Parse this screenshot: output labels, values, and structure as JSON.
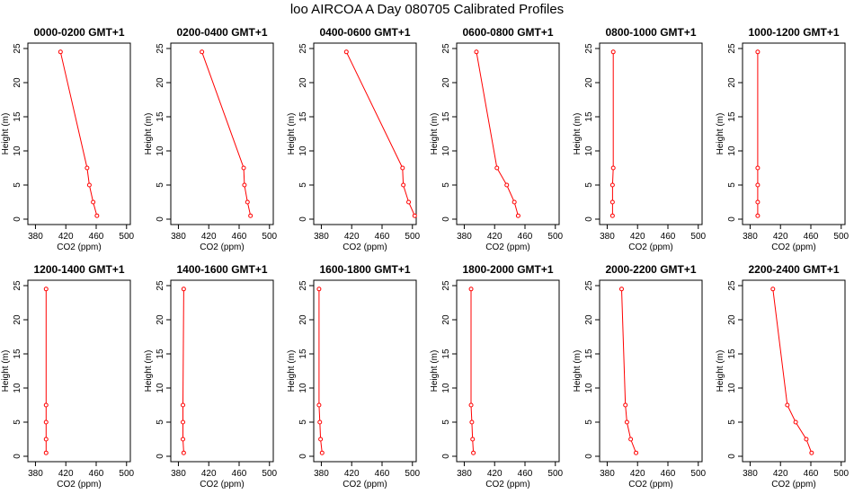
{
  "title": "loo AIRCOA A  Day 080705  Calibrated Profiles",
  "colors": {
    "series": "#ff0000",
    "axes": "#000000"
  },
  "chart_data": [
    {
      "type": "line",
      "title": "0000-0200 GMT+1",
      "xlabel": "CO2 (ppm)",
      "ylabel": "Height (m)",
      "xlim": [
        370,
        505
      ],
      "ylim": [
        0,
        25
      ],
      "xticks": [
        380,
        420,
        460,
        500
      ],
      "yticks": [
        0,
        5,
        10,
        15,
        20,
        25
      ],
      "x": [
        413,
        448,
        451,
        456,
        461
      ],
      "y": [
        24.5,
        7.5,
        5,
        2.5,
        0.5
      ]
    },
    {
      "type": "line",
      "title": "0200-0400 GMT+1",
      "xlabel": "CO2 (ppm)",
      "ylabel": "Height (m)",
      "xlim": [
        370,
        505
      ],
      "ylim": [
        0,
        25
      ],
      "xticks": [
        380,
        420,
        460,
        500
      ],
      "yticks": [
        0,
        5,
        10,
        15,
        20,
        25
      ],
      "x": [
        411,
        466,
        467,
        471,
        475
      ],
      "y": [
        24.5,
        7.5,
        5,
        2.5,
        0.5
      ]
    },
    {
      "type": "line",
      "title": "0400-0600 GMT+1",
      "xlabel": "CO2 (ppm)",
      "ylabel": "Height (m)",
      "xlim": [
        370,
        505
      ],
      "ylim": [
        0,
        25
      ],
      "xticks": [
        380,
        420,
        460,
        500
      ],
      "yticks": [
        0,
        5,
        10,
        15,
        20,
        25
      ],
      "x": [
        413,
        487,
        488,
        495,
        503
      ],
      "y": [
        24.5,
        7.5,
        5,
        2.5,
        0.5
      ]
    },
    {
      "type": "line",
      "title": "0600-0800 GMT+1",
      "xlabel": "CO2 (ppm)",
      "ylabel": "Height (m)",
      "xlim": [
        370,
        505
      ],
      "ylim": [
        0,
        25
      ],
      "xticks": [
        380,
        420,
        460,
        500
      ],
      "yticks": [
        0,
        5,
        10,
        15,
        20,
        25
      ],
      "x": [
        396,
        423,
        436,
        446,
        451
      ],
      "y": [
        24.5,
        7.5,
        5,
        2.5,
        0.5
      ]
    },
    {
      "type": "line",
      "title": "0800-1000 GMT+1",
      "xlabel": "CO2 (ppm)",
      "ylabel": "Height (m)",
      "xlim": [
        370,
        505
      ],
      "ylim": [
        0,
        25
      ],
      "xticks": [
        380,
        420,
        460,
        500
      ],
      "yticks": [
        0,
        5,
        10,
        15,
        20,
        25
      ],
      "x": [
        388,
        388,
        387,
        387,
        387
      ],
      "y": [
        24.5,
        7.5,
        5,
        2.5,
        0.5
      ]
    },
    {
      "type": "line",
      "title": "1000-1200 GMT+1",
      "xlabel": "CO2 (ppm)",
      "ylabel": "Height (m)",
      "xlim": [
        370,
        505
      ],
      "ylim": [
        0,
        25
      ],
      "xticks": [
        380,
        420,
        460,
        500
      ],
      "yticks": [
        0,
        5,
        10,
        15,
        20,
        25
      ],
      "x": [
        390,
        390,
        390,
        390,
        390
      ],
      "y": [
        24.5,
        7.5,
        5,
        2.5,
        0.5
      ]
    },
    {
      "type": "line",
      "title": "1200-1400 GMT+1",
      "xlabel": "CO2 (ppm)",
      "ylabel": "Height (m)",
      "xlim": [
        370,
        505
      ],
      "ylim": [
        0,
        25
      ],
      "xticks": [
        380,
        420,
        460,
        500
      ],
      "yticks": [
        0,
        5,
        10,
        15,
        20,
        25
      ],
      "x": [
        394,
        394,
        394,
        394,
        394
      ],
      "y": [
        24.5,
        7.5,
        5,
        2.5,
        0.5
      ]
    },
    {
      "type": "line",
      "title": "1400-1600 GMT+1",
      "xlabel": "CO2 (ppm)",
      "ylabel": "Height (m)",
      "xlim": [
        370,
        505
      ],
      "ylim": [
        0,
        25
      ],
      "xticks": [
        380,
        420,
        460,
        500
      ],
      "yticks": [
        0,
        5,
        10,
        15,
        20,
        25
      ],
      "x": [
        387,
        386,
        386,
        386,
        387
      ],
      "y": [
        24.5,
        7.5,
        5,
        2.5,
        0.5
      ]
    },
    {
      "type": "line",
      "title": "1600-1800 GMT+1",
      "xlabel": "CO2 (ppm)",
      "ylabel": "Height (m)",
      "xlim": [
        370,
        505
      ],
      "ylim": [
        0,
        25
      ],
      "xticks": [
        380,
        420,
        460,
        500
      ],
      "yticks": [
        0,
        5,
        10,
        15,
        20,
        25
      ],
      "x": [
        377,
        377,
        378,
        379,
        381
      ],
      "y": [
        24.5,
        7.5,
        5,
        2.5,
        0.5
      ]
    },
    {
      "type": "line",
      "title": "1800-2000 GMT+1",
      "xlabel": "CO2 (ppm)",
      "ylabel": "Height (m)",
      "xlim": [
        370,
        505
      ],
      "ylim": [
        0,
        25
      ],
      "xticks": [
        380,
        420,
        460,
        500
      ],
      "yticks": [
        0,
        5,
        10,
        15,
        20,
        25
      ],
      "x": [
        389,
        389,
        390,
        391,
        392
      ],
      "y": [
        24.5,
        7.5,
        5,
        2.5,
        0.5
      ]
    },
    {
      "type": "line",
      "title": "2000-2200 GMT+1",
      "xlabel": "CO2 (ppm)",
      "ylabel": "Height (m)",
      "xlim": [
        370,
        505
      ],
      "ylim": [
        0,
        25
      ],
      "xticks": [
        380,
        420,
        460,
        500
      ],
      "yticks": [
        0,
        5,
        10,
        15,
        20,
        25
      ],
      "x": [
        399,
        404,
        406,
        411,
        418
      ],
      "y": [
        24.5,
        7.5,
        5,
        2.5,
        0.5
      ]
    },
    {
      "type": "line",
      "title": "2200-2400 GMT+1",
      "xlabel": "CO2 (ppm)",
      "ylabel": "Height (m)",
      "xlim": [
        370,
        505
      ],
      "ylim": [
        0,
        25
      ],
      "xticks": [
        380,
        420,
        460,
        500
      ],
      "yticks": [
        0,
        5,
        10,
        15,
        20,
        25
      ],
      "x": [
        410,
        429,
        440,
        454,
        461
      ],
      "y": [
        24.5,
        7.5,
        5,
        2.5,
        0.5
      ]
    }
  ]
}
